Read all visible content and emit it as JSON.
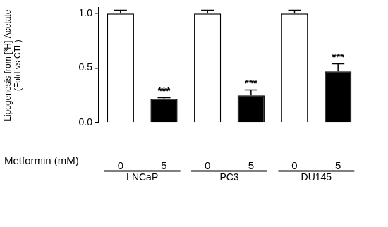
{
  "chart_data": {
    "type": "bar",
    "ylabel": [
      "Lipogenesis from [³H] Acetate",
      "(Fold vs CTL)"
    ],
    "xlabel": "Metformin (mM)",
    "categories": [
      "0",
      "5",
      "0",
      "5",
      "0",
      "5"
    ],
    "groups": [
      "LNCaP",
      "PC3",
      "DU145"
    ],
    "values": [
      1.0,
      0.22,
      1.0,
      0.25,
      1.0,
      0.47
    ],
    "errors": [
      0.03,
      0.01,
      0.03,
      0.05,
      0.03,
      0.07
    ],
    "annotations": [
      null,
      "***",
      null,
      "***",
      null,
      "***"
    ],
    "colors": [
      "#ffffff",
      "#000000",
      "#ffffff",
      "#000000",
      "#ffffff",
      "#000000"
    ],
    "ylim": [
      0,
      1.05
    ],
    "yticks": [
      {
        "value": 0,
        "label": "0.0"
      },
      {
        "value": 0.5,
        "label": "0.5"
      },
      {
        "value": 1,
        "label": "1.0"
      }
    ],
    "grid": false
  }
}
